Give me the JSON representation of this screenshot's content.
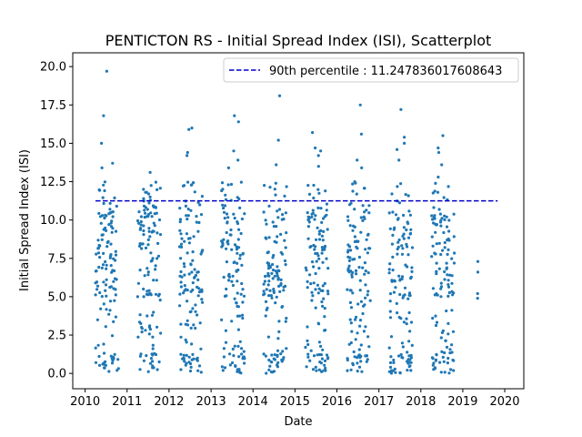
{
  "chart_data": {
    "type": "scatter",
    "title": "PENTICTON RS - Initial Spread Index (ISI), Scatterplot",
    "xlabel": "Date",
    "ylabel": "Initial Spread Index (ISI)",
    "xlim": [
      "2009-09-15",
      "2020-06-15"
    ],
    "ylim": [
      -1.0,
      20.9
    ],
    "x_ticks": [
      "2010",
      "2011",
      "2012",
      "2013",
      "2014",
      "2015",
      "2016",
      "2017",
      "2018",
      "2019",
      "2020"
    ],
    "y_ticks": [
      "0.0",
      "2.5",
      "5.0",
      "7.5",
      "10.0",
      "12.5",
      "15.0",
      "17.5",
      "20.0"
    ],
    "grid": false,
    "legend_position": "top-right",
    "point_color": "#1f77b4",
    "seasons": [
      {
        "year": 2010,
        "start": "2010-04-01",
        "end": "2010-10-20",
        "n": 130,
        "max": 19.7,
        "outliers": [
          19.7,
          16.8,
          15.0,
          13.7,
          13.4
        ]
      },
      {
        "year": 2011,
        "start": "2011-04-01",
        "end": "2011-10-20",
        "n": 130,
        "max": 13.1,
        "outliers": [
          13.1,
          12.0,
          11.8,
          11.5
        ]
      },
      {
        "year": 2012,
        "start": "2012-04-01",
        "end": "2012-10-20",
        "n": 130,
        "max": 16.0,
        "outliers": [
          16.0,
          15.9,
          14.4,
          14.2,
          12.3
        ]
      },
      {
        "year": 2013,
        "start": "2013-04-01",
        "end": "2013-10-20",
        "n": 130,
        "max": 16.8,
        "outliers": [
          16.8,
          16.4,
          14.5,
          13.9,
          13.4
        ]
      },
      {
        "year": 2014,
        "start": "2014-04-01",
        "end": "2014-10-20",
        "n": 130,
        "max": 18.1,
        "outliers": [
          18.1,
          15.2,
          13.6,
          12.4
        ]
      },
      {
        "year": 2015,
        "start": "2015-04-01",
        "end": "2015-10-20",
        "n": 130,
        "max": 15.7,
        "outliers": [
          15.7,
          14.7,
          14.5,
          14.2,
          13.5
        ]
      },
      {
        "year": 2016,
        "start": "2016-04-01",
        "end": "2016-10-20",
        "n": 130,
        "max": 17.5,
        "outliers": [
          17.5,
          15.6,
          13.9,
          13.4
        ]
      },
      {
        "year": 2017,
        "start": "2017-04-01",
        "end": "2017-10-20",
        "n": 130,
        "max": 17.2,
        "outliers": [
          17.2,
          15.4,
          15.0,
          14.6,
          13.9
        ]
      },
      {
        "year": 2018,
        "start": "2018-04-01",
        "end": "2018-10-20",
        "n": 130,
        "max": 15.5,
        "outliers": [
          15.5,
          14.7,
          14.4,
          13.6,
          12.8
        ]
      }
    ],
    "points_2019": [
      {
        "x": "2019-05-10",
        "y": 5.2
      },
      {
        "x": "2019-05-10",
        "y": 4.9
      },
      {
        "x": "2019-05-12",
        "y": 7.3
      },
      {
        "x": "2019-05-12",
        "y": 6.6
      }
    ],
    "series": [
      {
        "name": "90th percentile : 11.247836017608643",
        "type": "line",
        "style": "dashed",
        "color": "#0000cc",
        "y": 11.247836017608643,
        "x": [
          "2010-04-01",
          "2019-10-31"
        ]
      }
    ]
  }
}
